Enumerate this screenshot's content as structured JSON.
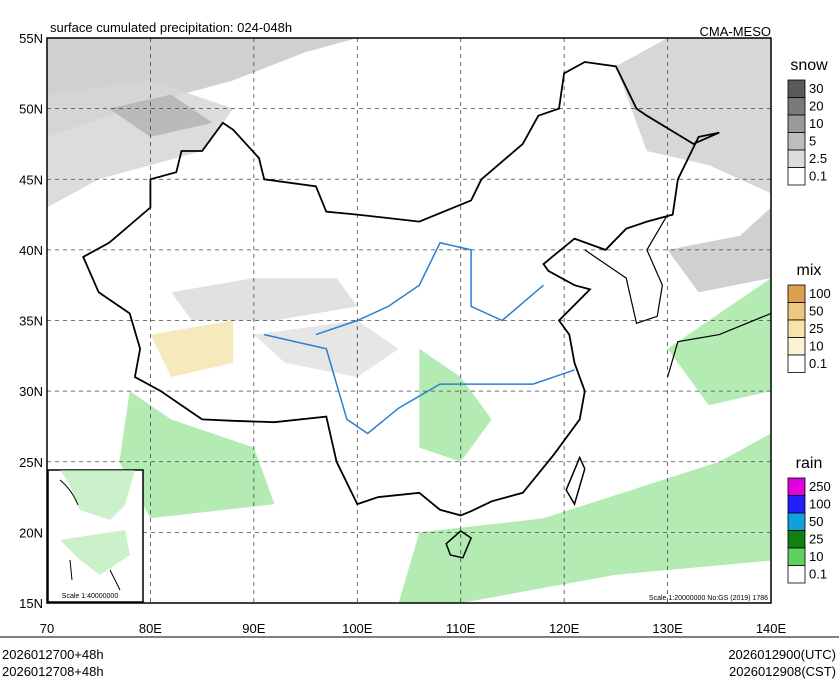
{
  "header": {
    "title": "surface cumulated precipitation: 024-048h",
    "source": "CMA-MESO"
  },
  "axes": {
    "lat_labels": [
      "55N",
      "50N",
      "45N",
      "40N",
      "35N",
      "30N",
      "25N",
      "20N",
      "15N"
    ],
    "lon_labels": [
      "70",
      "80E",
      "90E",
      "100E",
      "110E",
      "120E",
      "130E",
      "140E"
    ]
  },
  "legends": [
    {
      "title": "snow",
      "labels": [
        "30",
        "20",
        "10",
        "5",
        "2.5",
        "0.1"
      ]
    },
    {
      "title": "mix",
      "labels": [
        "100",
        "50",
        "25",
        "10",
        "0.1"
      ]
    },
    {
      "title": "rain",
      "labels": [
        "250",
        "100",
        "50",
        "25",
        "10",
        "0.1"
      ]
    }
  ],
  "scale_note": "Scale 1:20000000 No:GS (2019) 1786",
  "inset_scale": "Scale 1:40000000",
  "footer": {
    "init_utc": "2026012700+48h",
    "init_cst": "2026012708+48h",
    "valid_utc": "2026012900(UTC)",
    "valid_cst": "2026012908(CST)"
  }
}
